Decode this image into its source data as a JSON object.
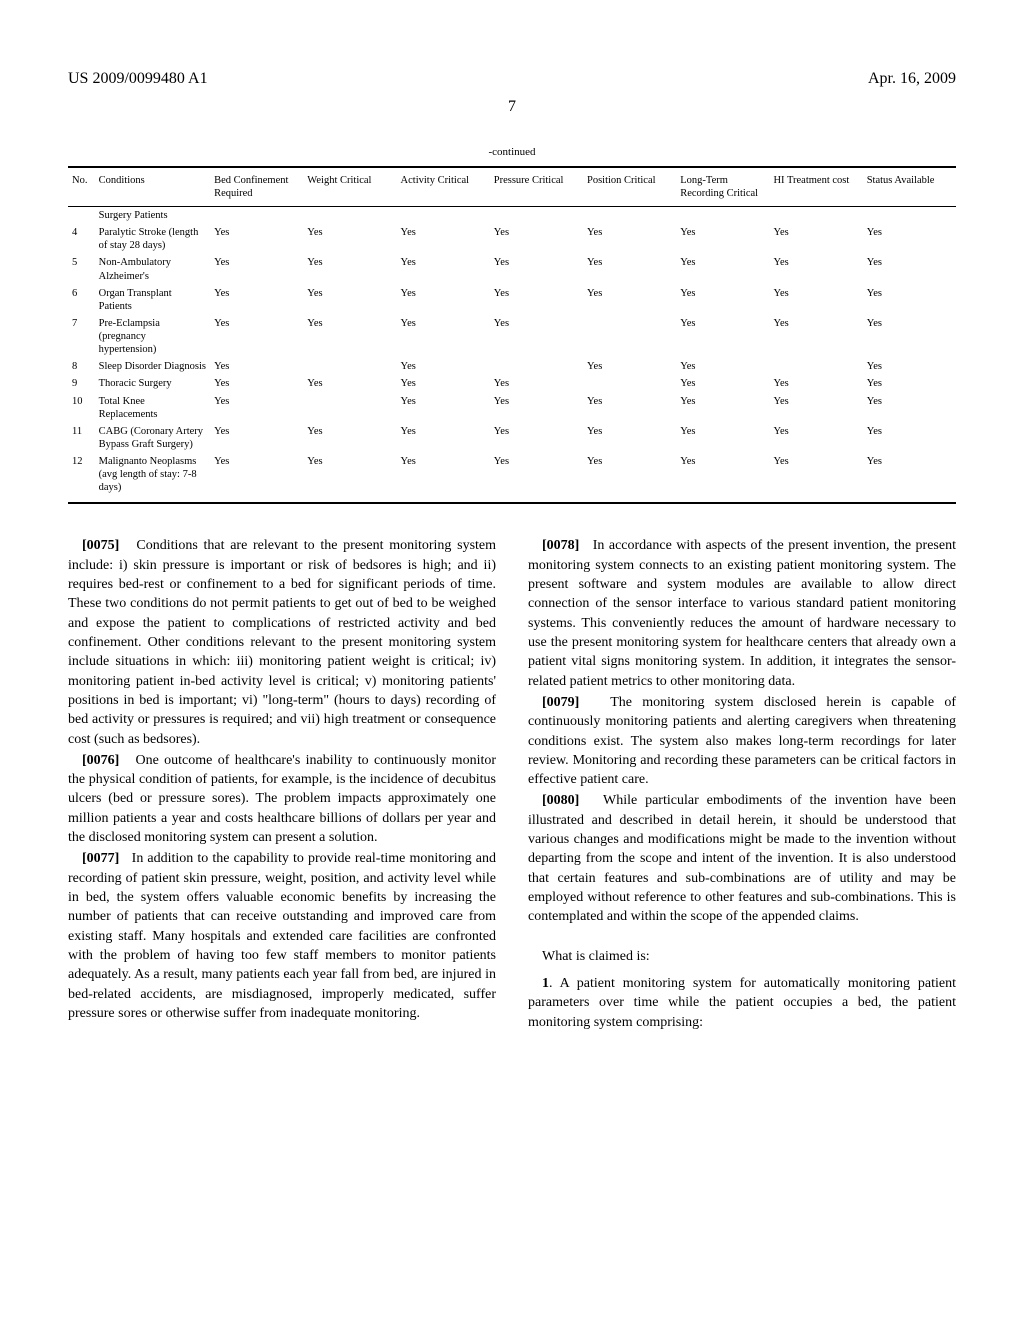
{
  "header": {
    "left": "US 2009/0099480 A1",
    "right": "Apr. 16, 2009",
    "page": "7"
  },
  "table": {
    "caption": "-continued",
    "columns": [
      "No.",
      "Conditions",
      "Bed Confinement Required",
      "Weight Critical",
      "Activity Critical",
      "Pressure Critical",
      "Position Critical",
      "Long-Term Recording Critical",
      "HI Treatment cost",
      "Status Available"
    ],
    "rows": [
      {
        "no": "",
        "cond": "Surgery Patients",
        "c": [
          "",
          "",
          "",
          "",
          "",
          "",
          "",
          ""
        ]
      },
      {
        "no": "4",
        "cond": "Paralytic Stroke (length of stay 28 days)",
        "c": [
          "Yes",
          "Yes",
          "Yes",
          "Yes",
          "Yes",
          "Yes",
          "Yes",
          "Yes"
        ]
      },
      {
        "no": "5",
        "cond": "Non-Ambulatory Alzheimer's",
        "c": [
          "Yes",
          "Yes",
          "Yes",
          "Yes",
          "Yes",
          "Yes",
          "Yes",
          "Yes"
        ]
      },
      {
        "no": "6",
        "cond": "Organ Transplant Patients",
        "c": [
          "Yes",
          "Yes",
          "Yes",
          "Yes",
          "Yes",
          "Yes",
          "Yes",
          "Yes"
        ]
      },
      {
        "no": "7",
        "cond": "Pre-Eclampsia (pregnancy hypertension)",
        "c": [
          "Yes",
          "Yes",
          "Yes",
          "Yes",
          "",
          "Yes",
          "Yes",
          "Yes"
        ]
      },
      {
        "no": "8",
        "cond": "Sleep Disorder Diagnosis",
        "c": [
          "Yes",
          "",
          "Yes",
          "",
          "Yes",
          "Yes",
          "",
          "Yes"
        ]
      },
      {
        "no": "9",
        "cond": "Thoracic Surgery",
        "c": [
          "Yes",
          "Yes",
          "Yes",
          "Yes",
          "",
          "Yes",
          "Yes",
          "Yes"
        ]
      },
      {
        "no": "10",
        "cond": "Total Knee Replacements",
        "c": [
          "Yes",
          "",
          "Yes",
          "Yes",
          "Yes",
          "Yes",
          "Yes",
          "Yes"
        ]
      },
      {
        "no": "11",
        "cond": "CABG (Coronary Artery Bypass Graft Surgery)",
        "c": [
          "Yes",
          "Yes",
          "Yes",
          "Yes",
          "Yes",
          "Yes",
          "Yes",
          "Yes"
        ]
      },
      {
        "no": "12",
        "cond": "Malignanto Neoplasms (avg length of stay: 7-8 days)",
        "c": [
          "Yes",
          "Yes",
          "Yes",
          "Yes",
          "Yes",
          "Yes",
          "Yes",
          "Yes"
        ]
      }
    ]
  },
  "left_col": {
    "p75": {
      "num": "[0075]",
      "text": "Conditions that are relevant to the present monitoring system include: i) skin pressure is important or risk of bedsores is high; and ii) requires bed-rest or confinement to a bed for significant periods of time. These two conditions do not permit patients to get out of bed to be weighed and expose the patient to complications of restricted activity and bed confinement. Other conditions relevant to the present monitoring system include situations in which: iii) monitoring patient weight is critical; iv) monitoring patient in-bed activity level is critical; v) monitoring patients' positions in bed is important; vi) \"long-term\" (hours to days) recording of bed activity or pressures is required; and vii) high treatment or consequence cost (such as bedsores)."
    },
    "p76": {
      "num": "[0076]",
      "text": "One outcome of healthcare's inability to continuously monitor the physical condition of patients, for example, is the incidence of decubitus ulcers (bed or pressure sores). The problem impacts approximately one million patients a year and costs healthcare billions of dollars per year and the disclosed monitoring system can present a solution."
    },
    "p77": {
      "num": "[0077]",
      "text": "In addition to the capability to provide real-time monitoring and recording of patient skin pressure, weight, position, and activity level while in bed, the system offers valuable economic benefits by increasing the number of patients that can receive outstanding and improved care from existing staff. Many hospitals and extended care facilities are confronted with the problem of having too few staff members to monitor patients adequately. As a result, many patients each year fall from bed, are injured in bed-related accidents, are misdiagnosed, improperly medicated, suffer pressure sores or otherwise suffer from inadequate monitoring."
    }
  },
  "right_col": {
    "p78": {
      "num": "[0078]",
      "text": "In accordance with aspects of the present invention, the present monitoring system connects to an existing patient monitoring system. The present software and system modules are available to allow direct connection of the sensor interface to various standard patient monitoring systems. This conveniently reduces the amount of hardware necessary to use the present monitoring system for healthcare centers that already own a patient vital signs monitoring system. In addition, it integrates the sensor-related patient metrics to other monitoring data."
    },
    "p79": {
      "num": "[0079]",
      "text": "The monitoring system disclosed herein is capable of continuously monitoring patients and alerting caregivers when threatening conditions exist. The system also makes long-term recordings for later review. Monitoring and recording these parameters can be critical factors in effective patient care."
    },
    "p80": {
      "num": "[0080]",
      "text": "While particular embodiments of the invention have been illustrated and described in detail herein, it should be understood that various changes and modifications might be made to the invention without departing from the scope and intent of the invention. It is also understood that certain features and sub-combinations are of utility and may be employed without reference to other features and sub-combinations. This is contemplated and within the scope of the appended claims."
    },
    "claims_intro": "What is claimed is:",
    "claim1": {
      "num": "1",
      "text": ". A patient monitoring system for automatically monitoring patient parameters over time while the patient occupies a bed, the patient monitoring system comprising:"
    }
  }
}
